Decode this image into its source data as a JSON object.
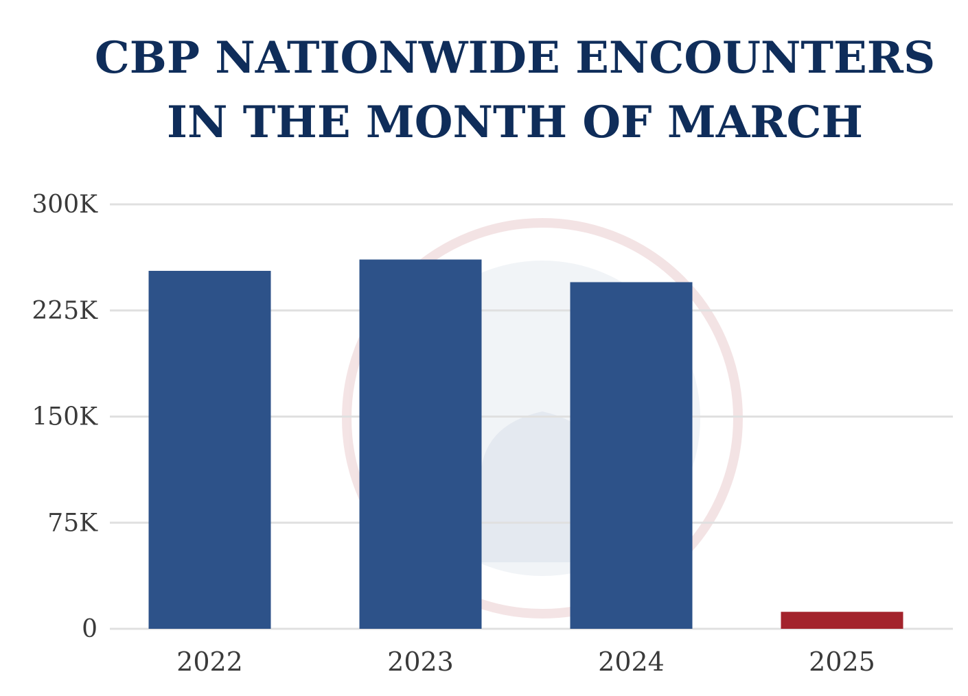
{
  "chart_data": {
    "type": "bar",
    "title_lines": [
      "CBP NATIONWIDE ENCOUNTERS",
      "IN THE MONTH OF MARCH"
    ],
    "xlabel": "",
    "ylabel": "",
    "categories": [
      "2022",
      "2023",
      "2024",
      "2025"
    ],
    "values": [
      253000,
      261000,
      245000,
      12000
    ],
    "bar_colors": [
      "#2d5289",
      "#2d5289",
      "#2d5289",
      "#a3232c"
    ],
    "ylim": [
      0,
      300000
    ],
    "y_ticks": [
      {
        "value": 0,
        "label": "0"
      },
      {
        "value": 75000,
        "label": "75K"
      },
      {
        "value": 150000,
        "label": "150K"
      },
      {
        "value": 225000,
        "label": "225K"
      },
      {
        "value": 300000,
        "label": "300K"
      }
    ],
    "grid": true,
    "legend": "none"
  },
  "colors": {
    "title": "#0f2d5a",
    "grid": "#e0e0e0",
    "axis_text": "#3a3a3a"
  },
  "watermark": "seal-logo"
}
